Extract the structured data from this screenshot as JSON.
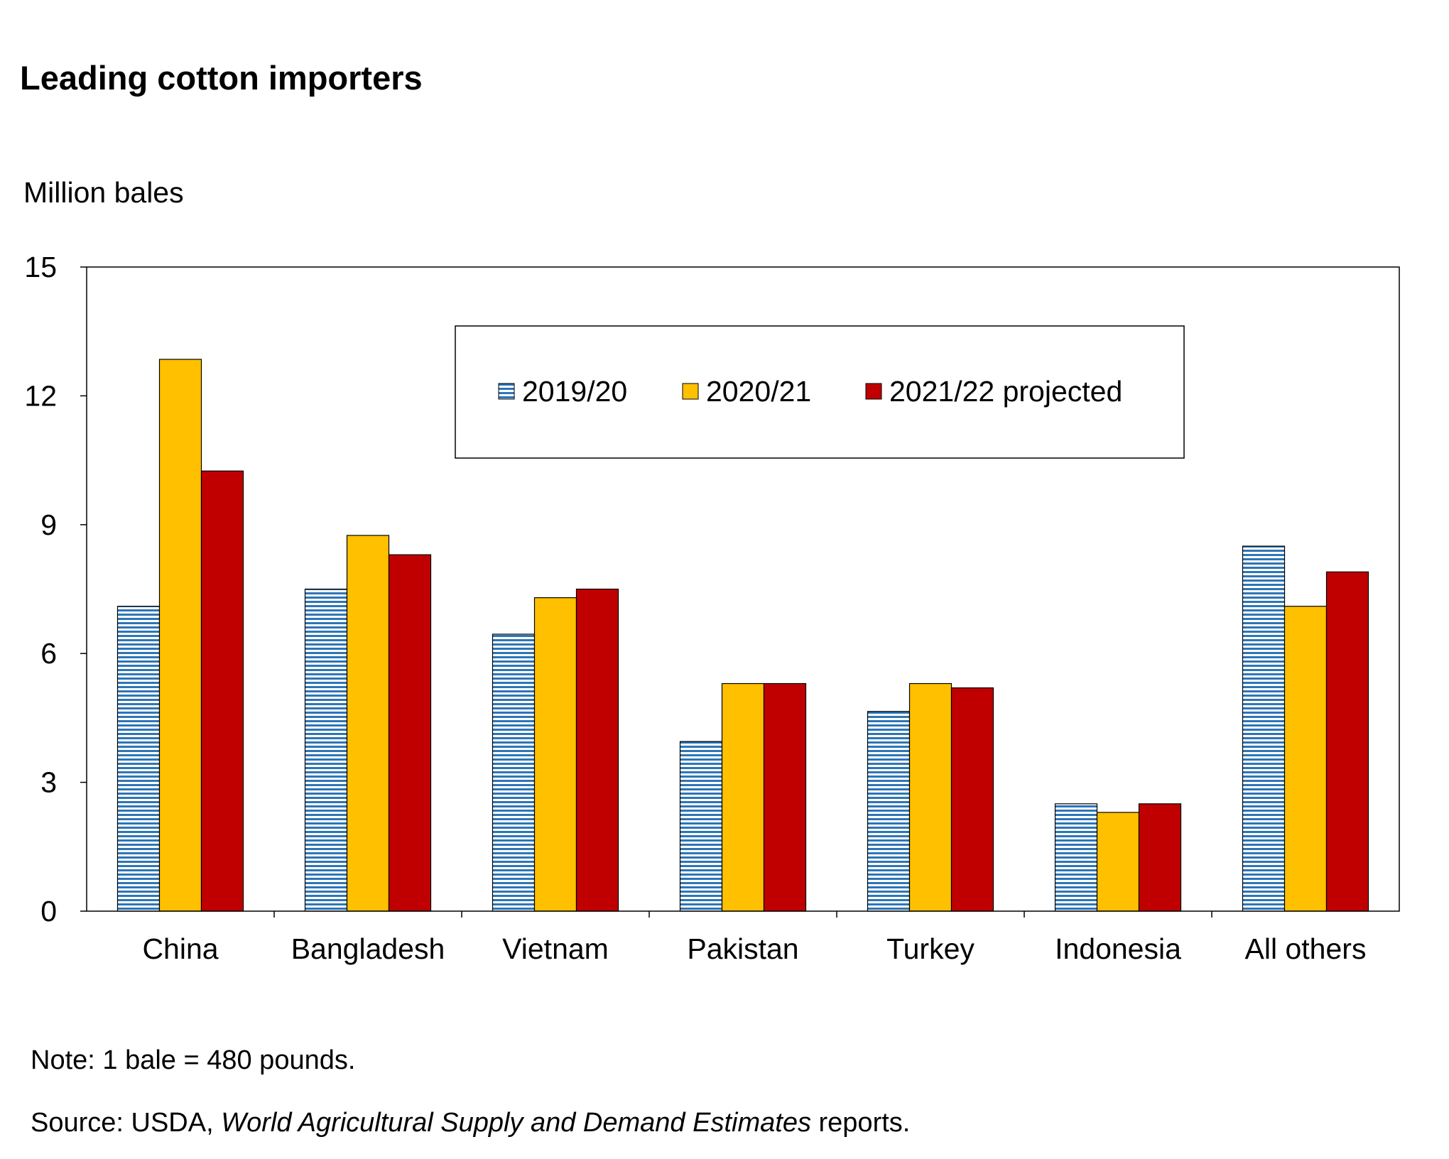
{
  "title": "Leading cotton importers",
  "units_label": "Million bales",
  "note": "Note: 1 bale = 480 pounds.",
  "source": {
    "prefix": "Source: USDA, ",
    "italic": "World Agricultural Supply and Demand Estimates",
    "suffix": " reports."
  },
  "colors": {
    "s2019": "#2e75b6",
    "s2020": "#ffc000",
    "s2021": "#c00000"
  },
  "chart_data": {
    "type": "bar",
    "title": "Leading cotton importers",
    "ylabel": "Million bales",
    "xlabel": "",
    "ylim": [
      0,
      15
    ],
    "yticks": [
      0,
      3,
      6,
      9,
      12,
      15
    ],
    "grid": false,
    "legend_position": "top-center",
    "categories": [
      "China",
      "Bangladesh",
      "Vietnam",
      "Pakistan",
      "Turkey",
      "Indonesia",
      "All others"
    ],
    "series": [
      {
        "name": "2019/20",
        "pattern": "horizontal-stripes",
        "values": [
          7.1,
          7.5,
          6.45,
          3.95,
          4.65,
          2.5,
          8.5
        ]
      },
      {
        "name": "2020/21",
        "pattern": "solid",
        "values": [
          12.85,
          8.75,
          7.3,
          5.3,
          5.3,
          2.3,
          7.1
        ]
      },
      {
        "name": "2021/22 projected",
        "pattern": "solid",
        "values": [
          10.25,
          8.3,
          7.5,
          5.3,
          5.2,
          2.5,
          7.9
        ]
      }
    ]
  }
}
